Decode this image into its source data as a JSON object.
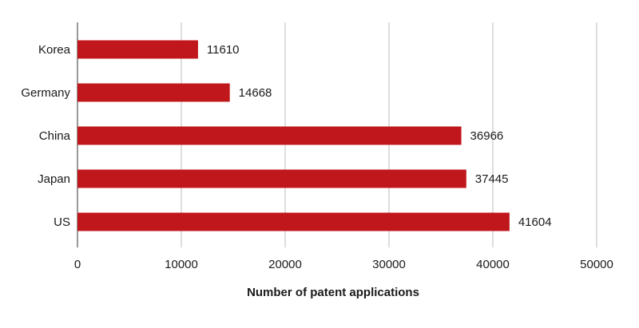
{
  "chart_data": {
    "type": "bar",
    "orientation": "horizontal",
    "categories": [
      "Korea",
      "Germany",
      "China",
      "Japan",
      "US"
    ],
    "values": [
      11610,
      14668,
      36966,
      37445,
      41604
    ],
    "xlabel": "Number of patent applications",
    "ylabel": "",
    "xlim": [
      0,
      50000
    ],
    "xticks": [
      "0",
      "10000",
      "20000",
      "30000",
      "40000",
      "50000"
    ],
    "grid": "vertical",
    "bar_color": "#c0171c",
    "grid_color": "#bdbdbd"
  }
}
